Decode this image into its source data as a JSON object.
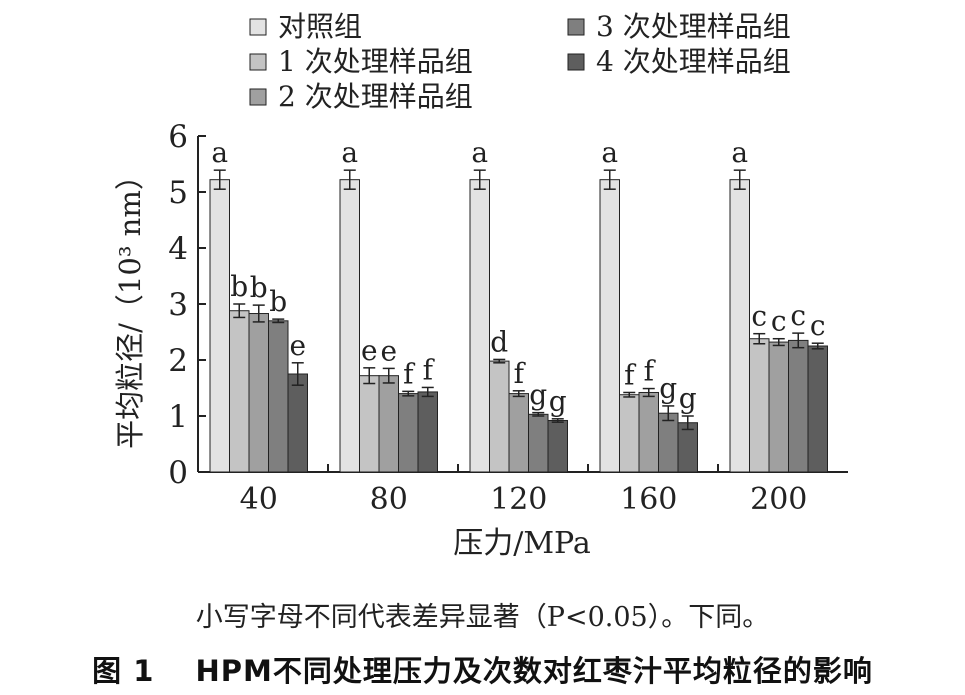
{
  "chart_data": {
    "type": "bar",
    "xlabel": "压力/MPa",
    "ylabel": "平均粒径/（10³ nm）",
    "ylim": [
      0,
      6
    ],
    "yticks": [
      0,
      1,
      2,
      3,
      4,
      5,
      6
    ],
    "categories": [
      "40",
      "80",
      "120",
      "160",
      "200"
    ],
    "legend_position": "top",
    "error_bars": true,
    "series": [
      {
        "name": "对照组",
        "color": "#e3e3e3",
        "values": [
          5.22,
          5.22,
          5.22,
          5.22,
          5.22
        ],
        "errors": [
          0.17,
          0.17,
          0.17,
          0.17,
          0.17
        ],
        "letters": [
          "a",
          "a",
          "a",
          "a",
          "a"
        ]
      },
      {
        "name": "1 次处理样品组",
        "color": "#c4c4c4",
        "values": [
          2.88,
          1.72,
          1.98,
          1.38,
          2.38
        ],
        "errors": [
          0.12,
          0.14,
          0.03,
          0.04,
          0.09
        ],
        "letters": [
          "b",
          "e",
          "d",
          "f",
          "c"
        ]
      },
      {
        "name": "2 次处理样品组",
        "color": "#a0a0a0",
        "values": [
          2.83,
          1.72,
          1.4,
          1.42,
          2.32
        ],
        "errors": [
          0.15,
          0.13,
          0.05,
          0.07,
          0.06
        ],
        "letters": [
          "b",
          "e",
          "f",
          "f",
          "c"
        ]
      },
      {
        "name": "3 次处理样品组",
        "color": "#7f7f7f",
        "values": [
          2.7,
          1.4,
          1.03,
          1.05,
          2.35
        ],
        "errors": [
          0.03,
          0.04,
          0.03,
          0.13,
          0.13
        ],
        "letters": [
          "b",
          "f",
          "g",
          "g",
          "c"
        ]
      },
      {
        "name": "4 次处理样品组",
        "color": "#5e5e5e",
        "values": [
          1.75,
          1.43,
          0.92,
          0.88,
          2.25
        ],
        "errors": [
          0.2,
          0.08,
          0.03,
          0.12,
          0.05
        ],
        "letters": [
          "e",
          "f",
          "g",
          "g",
          "c"
        ]
      }
    ]
  },
  "captions": {
    "note": "小写字母不同代表差异显著（P<0.05）。下同。",
    "title": "图 1　 HPM不同处理压力及次数对红枣汁平均粒径的影响"
  }
}
